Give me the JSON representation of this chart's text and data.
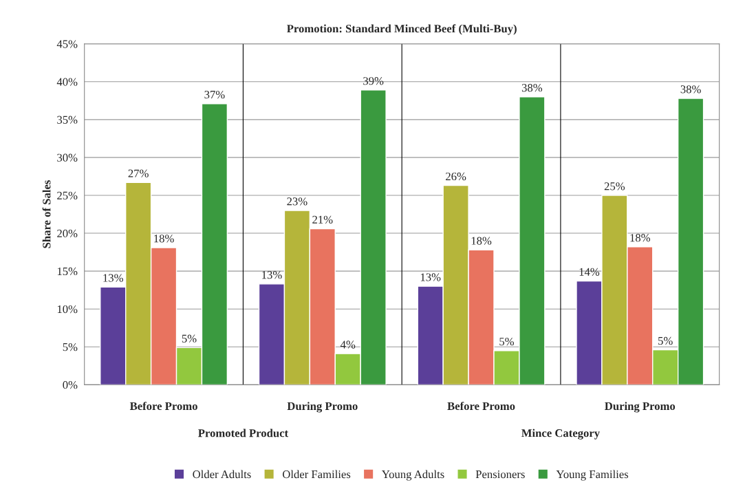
{
  "chart_data": {
    "type": "bar",
    "title": "Promotion: Standard Minced Beef (Multi-Buy)",
    "ylabel": "Share of Sales",
    "categories": [
      "Before Promo",
      "During Promo",
      "Before Promo",
      "During Promo"
    ],
    "annotations": [
      "Promoted Product",
      "Mince Category"
    ],
    "series": [
      {
        "name": "Older Adults",
        "color": "#5b3f99",
        "values": [
          12.9,
          13.3,
          13.0,
          13.7
        ],
        "value_labels": [
          "13%",
          "13%",
          "13%",
          "14%"
        ]
      },
      {
        "name": "Older Families",
        "color": "#b5b53a",
        "values": [
          26.7,
          23.0,
          26.3,
          25.0
        ],
        "value_labels": [
          "27%",
          "23%",
          "26%",
          "25%"
        ]
      },
      {
        "name": "Young Adults",
        "color": "#e8735f",
        "values": [
          18.1,
          20.6,
          17.8,
          18.2
        ],
        "value_labels": [
          "18%",
          "21%",
          "18%",
          "18%"
        ]
      },
      {
        "name": "Pensioners",
        "color": "#92c83e",
        "values": [
          4.9,
          4.1,
          4.5,
          4.6
        ],
        "value_labels": [
          "5%",
          "4%",
          "5%",
          "5%"
        ]
      },
      {
        "name": "Young Families",
        "color": "#3a9a3f",
        "values": [
          37.1,
          38.9,
          38.0,
          37.8
        ],
        "value_labels": [
          "37%",
          "39%",
          "38%",
          "38%"
        ]
      }
    ],
    "ylim": [
      0,
      45
    ],
    "yticks": [
      {
        "value": 0,
        "label": "0%"
      },
      {
        "value": 5,
        "label": "5%"
      },
      {
        "value": 10,
        "label": "10%"
      },
      {
        "value": 15,
        "label": "15%"
      },
      {
        "value": 20,
        "label": "20%"
      },
      {
        "value": 25,
        "label": "25%"
      },
      {
        "value": 30,
        "label": "30%"
      },
      {
        "value": 35,
        "label": "35%"
      },
      {
        "value": 40,
        "label": "40%"
      },
      {
        "value": 45,
        "label": "45%"
      }
    ],
    "grid": true,
    "legend": "bottom"
  }
}
